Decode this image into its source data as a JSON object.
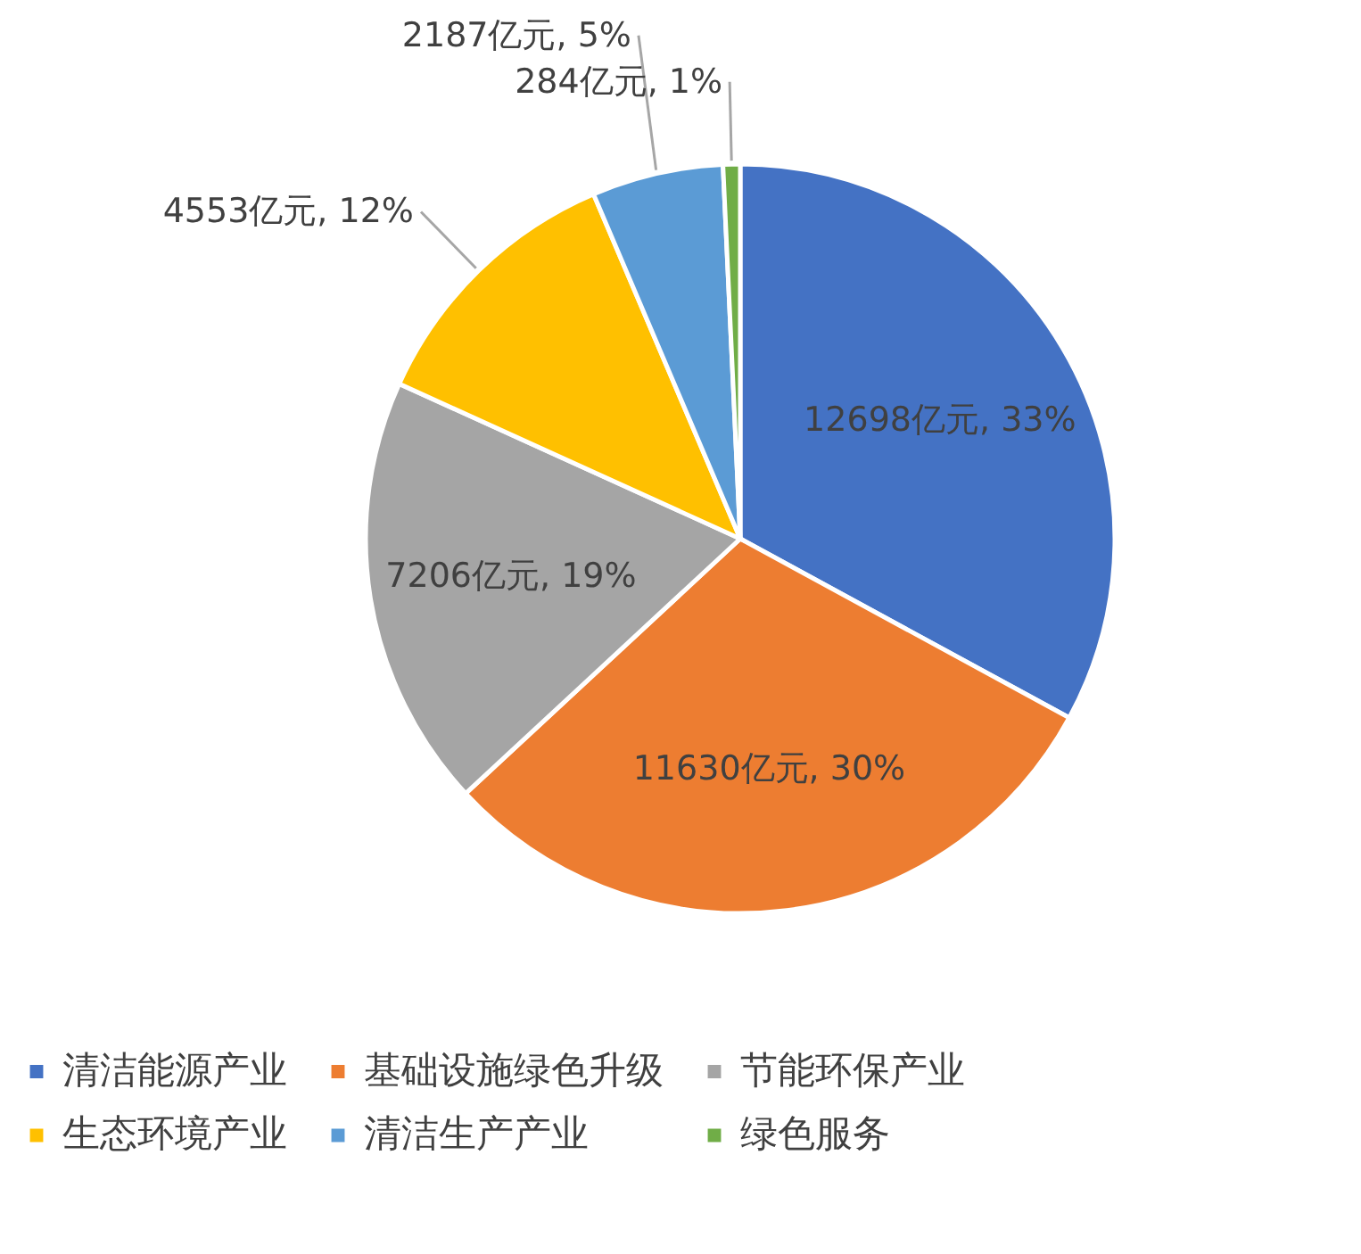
{
  "chart_data": {
    "type": "pie",
    "categories": [
      "清洁能源产业",
      "基础设施绿色升级",
      "节能环保产业",
      "生态环境产业",
      "清洁生产产业",
      "绿色服务"
    ],
    "values": [
      12698,
      11630,
      7206,
      4553,
      2187,
      284
    ],
    "colors": [
      "#4472c4",
      "#ed7d31",
      "#a5a5a5",
      "#ffc000",
      "#5b9bd5",
      "#70ad47"
    ],
    "value_labels": [
      "12698亿元, 33%",
      "11630亿元, 30%",
      "7206亿元, 19%",
      "4553亿元, 12%",
      "2187亿元, 5%",
      "284亿元, 1%"
    ],
    "legend": "bottom"
  }
}
